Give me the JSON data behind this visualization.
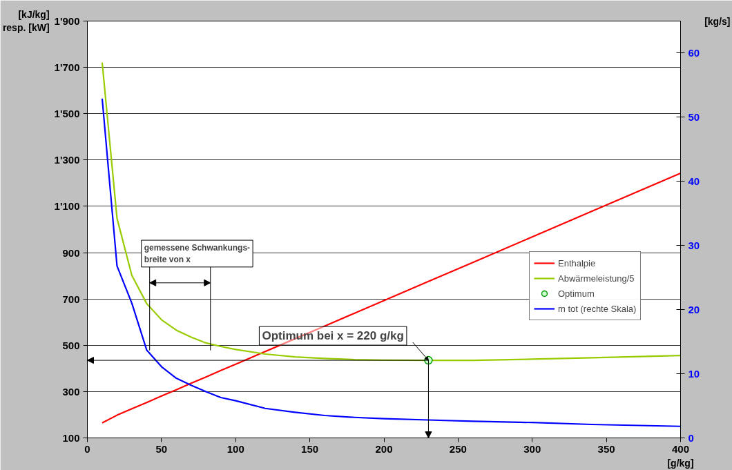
{
  "chart_data": {
    "type": "line",
    "xlabel": "[g/kg]",
    "ylabel": "[kJ/kg]\nresp. [kW]",
    "y2label": "[kg/s]",
    "x": [
      10,
      20,
      30,
      40,
      50,
      60,
      70,
      80,
      90,
      100,
      120,
      140,
      160,
      180,
      200,
      230,
      260,
      300,
      340,
      400
    ],
    "series": [
      {
        "name": "Enthalpie",
        "color": "#ff0000",
        "values": [
          165,
          198,
          226,
          253,
          281,
          308,
          336,
          363,
          391,
          418,
          473,
          528,
          583,
          638,
          693,
          776,
          858,
          968,
          1078,
          1243
        ]
      },
      {
        "name": "Abwärmeleistung/5",
        "color": "#99cc00",
        "values": [
          1721,
          1048,
          802,
          680,
          610,
          565,
          535,
          510,
          495,
          482,
          462,
          450,
          443,
          438,
          436,
          435,
          435,
          440,
          446,
          456
        ]
      },
      {
        "name": "Optimum",
        "type": "scatter",
        "marker": "circle",
        "color": "#009900",
        "x": [
          230
        ],
        "values": [
          435
        ]
      },
      {
        "name": "m tot (rechte Skala)",
        "color": "#0000ff",
        "axis": "y2",
        "values": [
          52.9,
          26.8,
          21.0,
          13.7,
          11.1,
          9.3,
          8.2,
          7.2,
          6.3,
          5.8,
          4.6,
          4.0,
          3.5,
          3.2,
          3.0,
          2.8,
          2.6,
          2.4,
          2.1,
          1.8
        ]
      }
    ],
    "xlim": [
      0,
      400
    ],
    "xticks": [
      0,
      50,
      100,
      150,
      200,
      250,
      300,
      350,
      400
    ],
    "ylim": [
      100,
      1900
    ],
    "yticks": [
      {
        "value": 100,
        "label": "100"
      },
      {
        "value": 300,
        "label": "300"
      },
      {
        "value": 500,
        "label": "500"
      },
      {
        "value": 700,
        "label": "700"
      },
      {
        "value": 900,
        "label": "900"
      },
      {
        "value": 1100,
        "label": "1'100"
      },
      {
        "value": 1300,
        "label": "1'300"
      },
      {
        "value": 1500,
        "label": "1'500"
      },
      {
        "value": 1700,
        "label": "1'700"
      },
      {
        "value": 1900,
        "label": "1'900"
      }
    ],
    "y2lim": [
      0,
      65
    ],
    "y2ticks": [
      0,
      10,
      20,
      30,
      40,
      50,
      60
    ],
    "grid": "y",
    "legend": "right",
    "annotations": [
      {
        "text": "Optimum bei x = 220 g/kg",
        "x": 230,
        "y": 435
      }
    ],
    "ref_lines": [
      {
        "axis": "x",
        "value": 42,
        "label": "gemessene Schwankungs-\nbreite von x"
      },
      {
        "axis": "x",
        "value": 83
      }
    ]
  }
}
